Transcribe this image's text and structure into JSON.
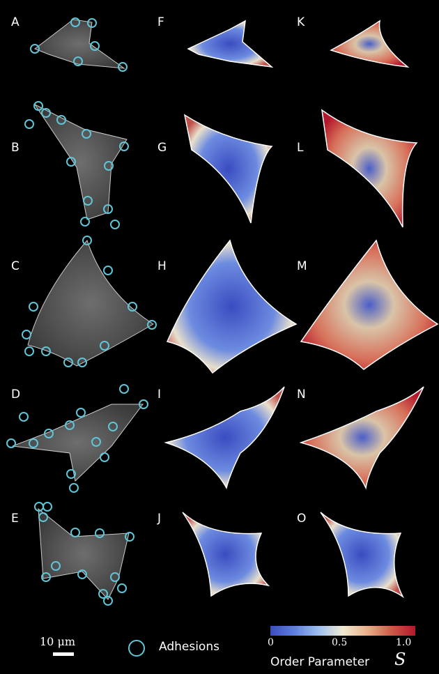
{
  "panels": [
    "A",
    "B",
    "C",
    "D",
    "E",
    "F",
    "G",
    "H",
    "I",
    "J",
    "K",
    "L",
    "M",
    "N",
    "O"
  ],
  "scale_bar": {
    "label": "10 μm"
  },
  "legend": {
    "adhesions_label": "Adhesions",
    "marker_color": "#5fc6d8"
  },
  "colorbar": {
    "label": "Order  Parameter",
    "symbol": "S",
    "ticks": [
      "0",
      "0.5",
      "1.0"
    ],
    "colormap": [
      "#3b4cc0",
      "#9dc0f0",
      "#f0ead2",
      "#eab08a",
      "#b2182b"
    ]
  },
  "colors": {
    "background": "#000000",
    "outline": "#ffffff",
    "adhesion": "#5fc6d8"
  }
}
